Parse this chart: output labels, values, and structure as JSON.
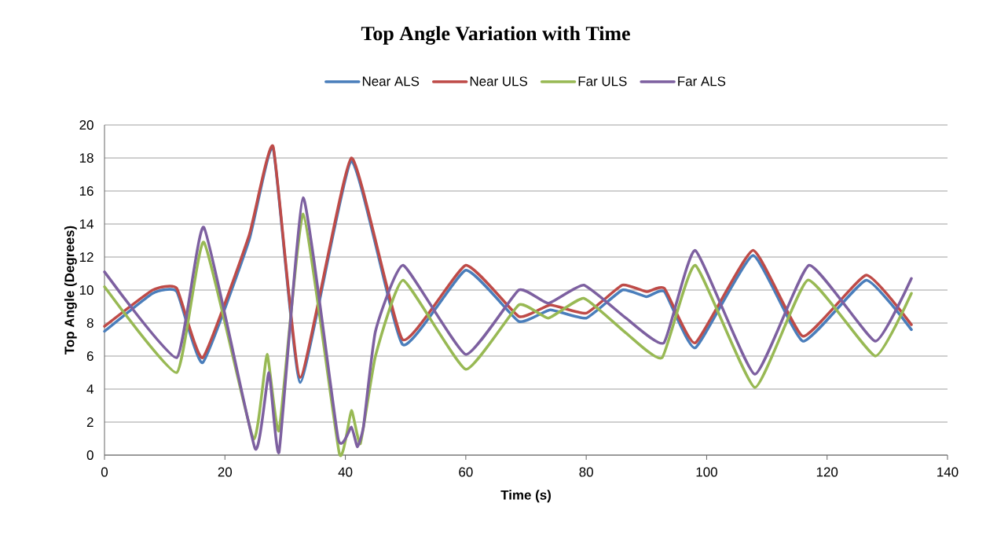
{
  "chart_data": {
    "type": "line",
    "title": "Top Angle Variation with Time",
    "xlabel": "Time (s)",
    "ylabel": "Top Angle (Degrees)",
    "xlim": [
      0,
      140
    ],
    "ylim": [
      0,
      20
    ],
    "xticks": [
      0,
      20,
      40,
      60,
      80,
      100,
      120,
      140
    ],
    "yticks": [
      0,
      2,
      4,
      6,
      8,
      10,
      12,
      14,
      16,
      18,
      20
    ],
    "grid": "y",
    "legend": "top",
    "series": [
      {
        "name": "Near ALS",
        "color": "#4a7ebb",
        "x": [
          0,
          8,
          12,
          16.3,
          24,
          28,
          32.5,
          41,
          49.5,
          60,
          68.8,
          74,
          80,
          86,
          90,
          93,
          98.1,
          107.7,
          116,
          126.5,
          134
        ],
        "values": [
          7.5,
          9.8,
          9.9,
          5.6,
          13,
          18.6,
          4.4,
          17.8,
          6.7,
          11.2,
          8.1,
          8.8,
          8.3,
          10,
          9.6,
          9.9,
          6.5,
          12.1,
          6.9,
          10.6,
          7.6
        ]
      },
      {
        "name": "Near ULS",
        "color": "#be4b48",
        "x": [
          0,
          8,
          12,
          16.3,
          24,
          28,
          32.5,
          41,
          49.5,
          60,
          68.8,
          74,
          80,
          86,
          90,
          93,
          98.1,
          107.7,
          116,
          126.5,
          134
        ],
        "values": [
          7.8,
          10,
          10.1,
          5.9,
          13.3,
          18.7,
          4.7,
          18,
          7,
          11.5,
          8.4,
          9.1,
          8.6,
          10.3,
          9.9,
          10.1,
          6.8,
          12.4,
          7.2,
          10.9,
          7.9
        ]
      },
      {
        "name": "Far ULS",
        "color": "#98b954",
        "x": [
          0,
          12,
          16.5,
          24.7,
          27,
          29,
          33,
          39,
          41,
          42.5,
          45,
          49.6,
          60,
          68.8,
          73.7,
          79.6,
          86.6,
          92.6,
          98.1,
          108,
          116.8,
          128,
          134
        ],
        "values": [
          10.2,
          5,
          12.9,
          1,
          6.1,
          1.5,
          14.6,
          0.1,
          2.7,
          0.7,
          6,
          10.6,
          5.2,
          9.1,
          8.3,
          9.5,
          7.4,
          5.9,
          11.5,
          4.1,
          10.6,
          6,
          9.8
        ]
      },
      {
        "name": "Far ALS",
        "color": "#7d60a0",
        "x": [
          0,
          12,
          16.5,
          25,
          27.3,
          29,
          33,
          38.8,
          41,
          42,
          43,
          45,
          49.6,
          60,
          68.8,
          73.7,
          79.6,
          86.6,
          92.9,
          98.1,
          108,
          117,
          128,
          134
        ],
        "values": [
          11.1,
          5.9,
          13.8,
          0.4,
          5,
          0.2,
          15.6,
          1,
          1.7,
          0.5,
          1.7,
          7.5,
          11.5,
          6.1,
          10,
          9.2,
          10.3,
          8.3,
          6.8,
          12.4,
          4.9,
          11.5,
          6.9,
          10.7
        ]
      }
    ]
  }
}
